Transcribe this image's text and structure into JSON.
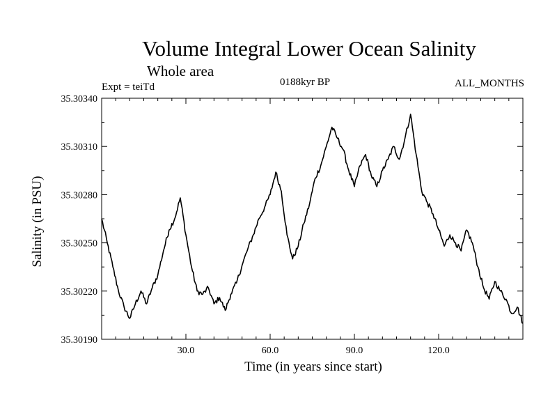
{
  "chart_data": {
    "type": "line",
    "title": "Volume Integral Lower Ocean Salinity",
    "subtitle": "Whole area",
    "experiment": "Expt = teiTd",
    "period": "0188kyr BP",
    "months": "ALL_MONTHS",
    "xlabel": "Time (in years since start)",
    "ylabel": "Salinity (in PSU)",
    "xlim": [
      0,
      150
    ],
    "ylim": [
      35.3019,
      35.3034
    ],
    "x_ticks": [
      30,
      60,
      90,
      120
    ],
    "x_tick_labels": [
      "30.0",
      "60.0",
      "90.0",
      "120.0"
    ],
    "y_ticks": [
      35.3019,
      35.3022,
      35.3025,
      35.3028,
      35.3031,
      35.3034
    ],
    "y_tick_labels": [
      "35.30190",
      "35.30220",
      "35.30250",
      "35.30280",
      "35.30310",
      "35.30340"
    ],
    "grid": false,
    "series": [
      {
        "name": "Salinity",
        "color": "#000000",
        "x": [
          0,
          2,
          4,
          6,
          8,
          10,
          12,
          14,
          16,
          18,
          20,
          22,
          24,
          26,
          28,
          30,
          32,
          34,
          36,
          38,
          40,
          42,
          44,
          46,
          48,
          50,
          52,
          54,
          56,
          58,
          60,
          62,
          64,
          66,
          68,
          70,
          72,
          74,
          76,
          78,
          80,
          82,
          84,
          86,
          88,
          90,
          92,
          94,
          96,
          98,
          100,
          102,
          104,
          106,
          108,
          110,
          112,
          114,
          116,
          118,
          120,
          122,
          124,
          126,
          128,
          130,
          132,
          134,
          136,
          138,
          140,
          142,
          144,
          146,
          148,
          150
        ],
        "values": [
          35.30265,
          35.3025,
          35.30235,
          35.3022,
          35.3021,
          35.30203,
          35.30212,
          35.3022,
          35.30212,
          35.30222,
          35.3023,
          35.30245,
          35.30258,
          35.30265,
          35.30278,
          35.30255,
          35.30235,
          35.3022,
          35.30218,
          35.30222,
          35.30212,
          35.30216,
          35.30208,
          35.30218,
          35.30225,
          35.30236,
          35.30246,
          35.30255,
          35.30265,
          35.30272,
          35.3028,
          35.30294,
          35.30282,
          35.30255,
          35.3024,
          35.30248,
          35.30262,
          35.30274,
          35.3029,
          35.30298,
          35.3031,
          35.30322,
          35.30315,
          35.30308,
          35.30295,
          35.30285,
          35.30298,
          35.30305,
          35.30292,
          35.30285,
          35.30295,
          35.30302,
          35.3031,
          35.30302,
          35.30315,
          35.3033,
          35.30305,
          35.30282,
          35.30275,
          35.30268,
          35.30258,
          35.30248,
          35.30255,
          35.3025,
          35.30245,
          35.30258,
          35.3025,
          35.30235,
          35.30222,
          35.30215,
          35.30226,
          35.3022,
          35.30215,
          35.30206,
          35.3021,
          35.302
        ]
      }
    ]
  }
}
